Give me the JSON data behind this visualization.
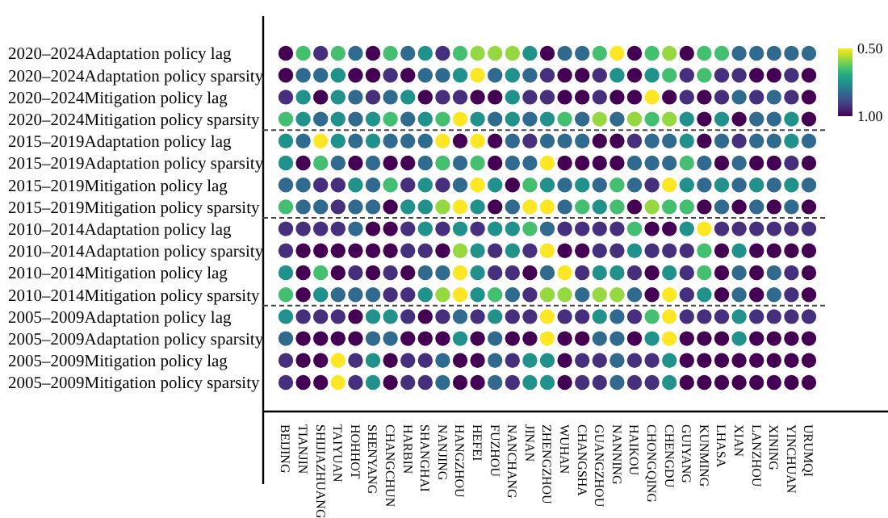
{
  "chart_data": {
    "type": "heatmap",
    "categories": [
      "BEIJING",
      "TIANJIN",
      "SHIJIAZHUANG",
      "TAIYUAN",
      "HOHHOT",
      "SHENYANG",
      "CHANGCHUN",
      "HARBIN",
      "SHANGHAI",
      "NANJING",
      "HANGZHOU",
      "HEFEI",
      "FUZHOU",
      "NANCHANG",
      "JINAN",
      "ZHENGZHOU",
      "WUHAN",
      "CHANGSHA",
      "GUANGZHOU",
      "NANNING",
      "HAIKOU",
      "CHONGQING",
      "CHENGDU",
      "GUIYANG",
      "KUNMING",
      "LHASA",
      "XIAN",
      "LANZHOU",
      "XINING",
      "YINCHUAN",
      "URUMQI"
    ],
    "y_categories": [
      "2020–2024Adaptation policy lag",
      "2020–2024Adaptation policy sparsity",
      "2020–2024Mitigation policy lag",
      "2020–2024Mitigation policy sparsity",
      "2015–2019Adaptation policy lag",
      "2015–2019Adaptation policy sparsity",
      "2015–2019Mitigation policy lag",
      "2015–2019Mitigation policy sparsity",
      "2010–2014Adaptation policy lag",
      "2010–2014Adaptation policy sparsity",
      "2010–2014Mitigation policy lag",
      "2010–2014Mitigation policy sparsity",
      "2005–2009Adaptation policy lag",
      "2005–2009Adaptation policy sparsity",
      "2005–2009Mitigation policy lag",
      "2005–2009Mitigation policy sparsity"
    ],
    "cells": [
      [
        1,
        0.65,
        0.93,
        0.65,
        0.83,
        1,
        0.65,
        0.83,
        0.75,
        0.93,
        0.65,
        0.58,
        0.58,
        0.58,
        0.75,
        1,
        0.83,
        0.83,
        0.65,
        0.5,
        1,
        0.65,
        0.58,
        1,
        0.65,
        0.65,
        0.83,
        0.83,
        0.83,
        0.83,
        0.83
      ],
      [
        1,
        0.83,
        0.83,
        0.75,
        1,
        1,
        0.93,
        1,
        0.83,
        0.83,
        0.75,
        0.5,
        0.83,
        0.75,
        0.83,
        0.93,
        1,
        1,
        0.93,
        0.75,
        1,
        0.75,
        0.65,
        0.93,
        0.65,
        0.93,
        0.93,
        1,
        1,
        0.93,
        1
      ],
      [
        0.93,
        0.75,
        1,
        0.75,
        0.83,
        0.93,
        0.83,
        0.75,
        1,
        0.93,
        0.93,
        1,
        1,
        0.75,
        0.93,
        0.93,
        1,
        1,
        0.93,
        1,
        1,
        0.5,
        1,
        0.93,
        1,
        0.93,
        0.83,
        0.93,
        0.83,
        0.93,
        1
      ],
      [
        0.65,
        0.75,
        0.83,
        0.75,
        0.83,
        0.75,
        0.65,
        0.83,
        0.75,
        0.65,
        0.5,
        0.75,
        0.83,
        0.75,
        0.83,
        0.75,
        0.65,
        0.83,
        0.58,
        0.83,
        0.58,
        0.65,
        0.58,
        0.75,
        1,
        0.75,
        1,
        0.83,
        0.83,
        0.75,
        1
      ],
      [
        0.75,
        0.83,
        0.5,
        0.75,
        0.83,
        0.75,
        0.83,
        0.83,
        0.83,
        0.5,
        1,
        0.5,
        1,
        0.83,
        0.93,
        0.83,
        0.83,
        0.83,
        1,
        1,
        0.93,
        0.83,
        0.83,
        0.75,
        1,
        0.83,
        0.93,
        0.83,
        0.83,
        0.75,
        0.83
      ],
      [
        0.75,
        1,
        0.65,
        0.83,
        1,
        0.83,
        1,
        1,
        0.83,
        0.65,
        0.83,
        0.65,
        1,
        0.83,
        0.83,
        0.5,
        1,
        1,
        1,
        1,
        0.83,
        0.83,
        0.83,
        0.65,
        0.83,
        1,
        0.83,
        1,
        1,
        0.93,
        1
      ],
      [
        0.83,
        0.83,
        0.93,
        0.93,
        0.75,
        0.83,
        0.65,
        0.93,
        0.75,
        0.93,
        0.83,
        0.5,
        0.75,
        1,
        0.65,
        0.75,
        0.83,
        0.75,
        0.83,
        0.65,
        0.83,
        0.93,
        0.5,
        0.75,
        0.83,
        0.75,
        0.83,
        0.75,
        0.83,
        0.75,
        0.83
      ],
      [
        0.65,
        0.83,
        0.83,
        0.93,
        0.83,
        0.83,
        1,
        0.75,
        0.75,
        0.58,
        0.5,
        0.75,
        1,
        0.83,
        0.5,
        0.5,
        0.83,
        0.65,
        0.75,
        0.65,
        1,
        0.58,
        0.65,
        0.65,
        1,
        0.83,
        1,
        0.83,
        1,
        0.83,
        1
      ],
      [
        0.93,
        0.93,
        0.93,
        0.93,
        0.83,
        1,
        1,
        0.93,
        0.75,
        0.93,
        0.75,
        0.93,
        0.75,
        0.75,
        0.65,
        0.83,
        0.93,
        0.93,
        0.93,
        0.93,
        0.65,
        1,
        1,
        0.75,
        0.5,
        0.93,
        0.93,
        0.93,
        0.93,
        0.93,
        0.93
      ],
      [
        0.93,
        1,
        1,
        1,
        1,
        1,
        1,
        0.93,
        0.93,
        1,
        0.58,
        0.75,
        0.93,
        0.75,
        0.93,
        0.5,
        1,
        1,
        0.93,
        0.93,
        0.75,
        0.93,
        0.93,
        0.93,
        0.65,
        1,
        0.75,
        1,
        1,
        1,
        1
      ],
      [
        0.75,
        1,
        0.65,
        1,
        0.93,
        1,
        0.93,
        1,
        0.83,
        0.83,
        0.5,
        0.75,
        0.93,
        0.93,
        1,
        0.83,
        0.5,
        0.93,
        0.75,
        0.75,
        0.93,
        1,
        0.75,
        0.93,
        0.65,
        1,
        0.83,
        1,
        0.83,
        0.93,
        1
      ],
      [
        0.65,
        1,
        0.75,
        0.83,
        0.83,
        0.83,
        0.93,
        0.93,
        0.75,
        0.58,
        0.5,
        0.75,
        0.65,
        0.83,
        0.93,
        0.58,
        0.58,
        0.83,
        0.58,
        0.58,
        0.83,
        1,
        0.5,
        0.93,
        0.75,
        1,
        0.83,
        1,
        0.83,
        0.93,
        1
      ],
      [
        0.75,
        0.93,
        0.93,
        0.93,
        1,
        0.75,
        0.75,
        0.93,
        1,
        0.93,
        0.83,
        0.93,
        0.75,
        0.93,
        0.93,
        0.5,
        0.93,
        0.93,
        0.75,
        0.83,
        0.93,
        0.65,
        0.5,
        0.93,
        0.93,
        0.93,
        0.75,
        0.93,
        0.93,
        0.93,
        0.93
      ],
      [
        0.83,
        1,
        1,
        1,
        1,
        0.83,
        0.83,
        1,
        1,
        1,
        0.75,
        1,
        0.83,
        1,
        1,
        0.5,
        1,
        1,
        0.83,
        0.83,
        1,
        0.75,
        0.5,
        1,
        1,
        1,
        0.75,
        1,
        1,
        1,
        1
      ],
      [
        0.93,
        1,
        1,
        0.5,
        0.93,
        0.75,
        1,
        0.93,
        0.93,
        0.83,
        1,
        1,
        0.83,
        0.93,
        0.75,
        0.75,
        1,
        0.93,
        0.93,
        0.83,
        0.93,
        0.93,
        0.75,
        1,
        1,
        1,
        1,
        1,
        1,
        1,
        1
      ],
      [
        0.93,
        1,
        1,
        0.5,
        0.93,
        0.75,
        1,
        0.93,
        0.93,
        0.83,
        1,
        1,
        0.83,
        0.93,
        0.75,
        0.75,
        1,
        0.93,
        0.93,
        0.83,
        0.93,
        0.93,
        0.75,
        1,
        1,
        1,
        1,
        1,
        1,
        1,
        1
      ]
    ],
    "clim": [
      0.5,
      1
    ],
    "cticks": [
      {
        "value": 0.5,
        "label": "0.50"
      },
      {
        "value": 1,
        "label": "1.00"
      }
    ]
  }
}
